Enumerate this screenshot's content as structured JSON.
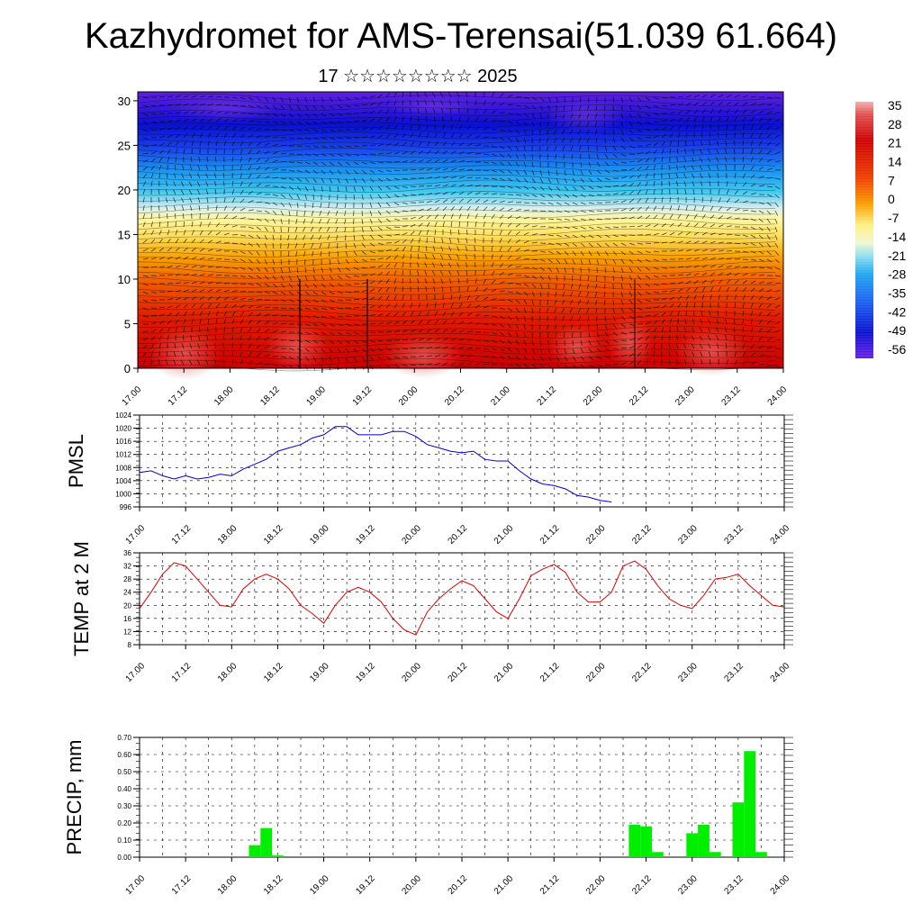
{
  "header": {
    "title": "Kazhydromet for AMS-Terensai(51.039 61.664)",
    "subtitle": "17 ☆☆☆☆☆☆☆☆ 2025"
  },
  "colors": {
    "pmsl_line": "#0000cc",
    "temp_line": "#dd0000",
    "precip_bar": "#00ee00",
    "grid": "#000000"
  },
  "chart_data": [
    {
      "type": "heatmap",
      "description_source": "vertical cross-section with wind vectors",
      "x_tick_labels": [
        "17.00",
        "17.12",
        "18.00",
        "18.12",
        "19.00",
        "19.12",
        "20.00",
        "20.12",
        "21.00",
        "21.12",
        "22.00",
        "22.12",
        "23.00",
        "23.12",
        "24.00"
      ],
      "ylim": [
        0,
        31
      ],
      "y_ticks": [
        0,
        5,
        10,
        15,
        20,
        25,
        30
      ],
      "colorbar": {
        "labels": [
          "35",
          "28",
          "21",
          "14",
          "7",
          "0",
          "-7",
          "-14",
          "-21",
          "-28",
          "-35",
          "-42",
          "-49",
          "-56"
        ],
        "range": [
          -63,
          35
        ]
      }
    },
    {
      "type": "line",
      "ylabel": "PMSL",
      "ylim": [
        996,
        1024
      ],
      "y_ticks": [
        "996",
        "1000",
        "1004",
        "1008",
        "1012",
        "1016",
        "1020",
        "1024"
      ],
      "x_tick_labels": [
        "17.00",
        "17.12",
        "18.00",
        "18.12",
        "19.00",
        "19.12",
        "20.00",
        "20.12",
        "21.00",
        "21.12",
        "22.00",
        "22.12",
        "23.00",
        "23.12",
        "24.00"
      ],
      "x_step_hours": 3,
      "values": [
        1006.5,
        1007,
        1005.5,
        1004.5,
        1005.5,
        1004.5,
        1005,
        1006,
        1005.5,
        1007.5,
        1009,
        1010.5,
        1013,
        1014,
        1015,
        1017,
        1018,
        1020.5,
        1020.5,
        1018,
        1018,
        1018,
        1019,
        1019,
        1017.5,
        1015,
        1014,
        1013,
        1012.5,
        1013,
        1010.5,
        1010,
        1010,
        1007,
        1004.5,
        1003,
        1002.5,
        1001.5,
        999.5,
        999,
        998,
        997.5
      ]
    },
    {
      "type": "line",
      "ylabel": "TEMP at 2 M",
      "ylim": [
        8,
        36
      ],
      "y_ticks": [
        "8",
        "12",
        "16",
        "20",
        "24",
        "28",
        "32",
        "36"
      ],
      "x_tick_labels": [
        "17.00",
        "17.12",
        "18.00",
        "18.12",
        "19.00",
        "19.12",
        "20.00",
        "20.12",
        "21.00",
        "21.12",
        "22.00",
        "22.12",
        "23.00",
        "23.12",
        "24.00"
      ],
      "x_step_hours": 3,
      "values": [
        19,
        24,
        29.5,
        33,
        32,
        28,
        24,
        20,
        19.5,
        25,
        28,
        29.5,
        28,
        25,
        20,
        17.5,
        14.5,
        20,
        24,
        25.5,
        24,
        21,
        16,
        12.5,
        11,
        18,
        22,
        25,
        27.5,
        26,
        22,
        18,
        16,
        22,
        29,
        31,
        32.5,
        30,
        24,
        21,
        21,
        24,
        32,
        33.5,
        31,
        26,
        22,
        20,
        19,
        23,
        28,
        28.5,
        29.5,
        26,
        23,
        20,
        19.5
      ]
    },
    {
      "type": "bar",
      "ylabel": "PRECIP, mm",
      "ylim": [
        0,
        0.7
      ],
      "y_ticks": [
        "0.00",
        "0.10",
        "0.20",
        "0.30",
        "0.40",
        "0.50",
        "0.60",
        "0.70"
      ],
      "x_tick_labels": [
        "17.00",
        "17.12",
        "18.00",
        "18.12",
        "19.00",
        "19.12",
        "20.00",
        "20.12",
        "21.00",
        "21.12",
        "22.00",
        "22.12",
        "23.00",
        "23.12",
        "24.00"
      ],
      "x_step_hours": 3,
      "bars": [
        {
          "hour": 30,
          "value": 0.07
        },
        {
          "hour": 33,
          "value": 0.17
        },
        {
          "hour": 36,
          "value": 0.01
        },
        {
          "hour": 129,
          "value": 0.19
        },
        {
          "hour": 132,
          "value": 0.18
        },
        {
          "hour": 135,
          "value": 0.03
        },
        {
          "hour": 144,
          "value": 0.14
        },
        {
          "hour": 147,
          "value": 0.19
        },
        {
          "hour": 150,
          "value": 0.03
        },
        {
          "hour": 156,
          "value": 0.32
        },
        {
          "hour": 159,
          "value": 0.62
        },
        {
          "hour": 162,
          "value": 0.03
        }
      ]
    }
  ]
}
